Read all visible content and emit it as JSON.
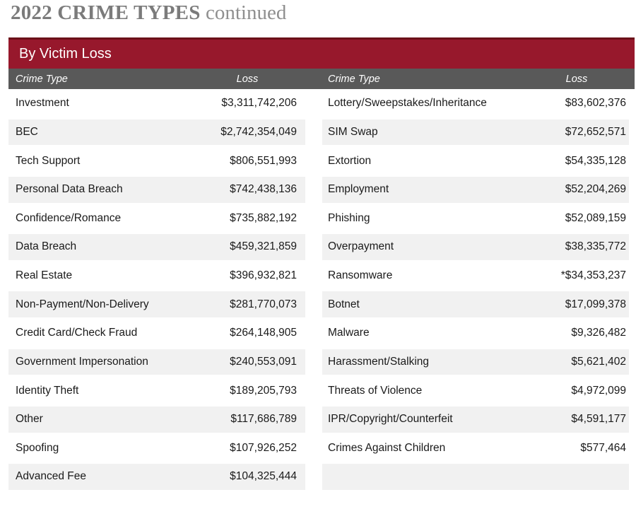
{
  "title": {
    "main": "2022 CRIME TYPES",
    "suffix": "continued"
  },
  "table": {
    "title": "By Victim Loss",
    "columns": {
      "crime_type": "Crime Type",
      "loss": "Loss"
    },
    "left_rows": [
      {
        "type": "Investment",
        "loss": "$3,311,742,206"
      },
      {
        "type": "BEC",
        "loss": "$2,742,354,049"
      },
      {
        "type": "Tech Support",
        "loss": "$806,551,993"
      },
      {
        "type": "Personal Data Breach",
        "loss": "$742,438,136"
      },
      {
        "type": "Confidence/Romance",
        "loss": "$735,882,192"
      },
      {
        "type": "Data Breach",
        "loss": "$459,321,859"
      },
      {
        "type": "Real Estate",
        "loss": "$396,932,821"
      },
      {
        "type": "Non-Payment/Non-Delivery",
        "loss": "$281,770,073"
      },
      {
        "type": "Credit Card/Check Fraud",
        "loss": "$264,148,905"
      },
      {
        "type": "Government Impersonation",
        "loss": "$240,553,091"
      },
      {
        "type": "Identity Theft",
        "loss": "$189,205,793"
      },
      {
        "type": "Other",
        "loss": "$117,686,789"
      },
      {
        "type": "Spoofing",
        "loss": "$107,926,252"
      },
      {
        "type": "Advanced Fee",
        "loss": "$104,325,444"
      }
    ],
    "right_rows": [
      {
        "type": "Lottery/Sweepstakes/Inheritance",
        "loss": "$83,602,376"
      },
      {
        "type": "SIM Swap",
        "loss": "$72,652,571"
      },
      {
        "type": "Extortion",
        "loss": "$54,335,128"
      },
      {
        "type": "Employment",
        "loss": "$52,204,269"
      },
      {
        "type": "Phishing",
        "loss": "$52,089,159"
      },
      {
        "type": "Overpayment",
        "loss": "$38,335,772"
      },
      {
        "type": "Ransomware",
        "loss": "*$34,353,237"
      },
      {
        "type": "Botnet",
        "loss": "$17,099,378"
      },
      {
        "type": "Malware",
        "loss": "$9,326,482"
      },
      {
        "type": "Harassment/Stalking",
        "loss": "$5,621,402"
      },
      {
        "type": "Threats of Violence",
        "loss": "$4,972,099"
      },
      {
        "type": "IPR/Copyright/Counterfeit",
        "loss": "$4,591,177"
      },
      {
        "type": "Crimes Against Children",
        "loss": "$577,464"
      },
      {
        "type": "",
        "loss": ""
      }
    ]
  },
  "colors": {
    "accent_red": "#97182C",
    "accent_red_dark": "#6B1119",
    "header_gray": "#595959",
    "row_shade": "#F1F1F1",
    "title_gray": "#7B7B7B",
    "title_gray_light": "#8F8F8F"
  }
}
